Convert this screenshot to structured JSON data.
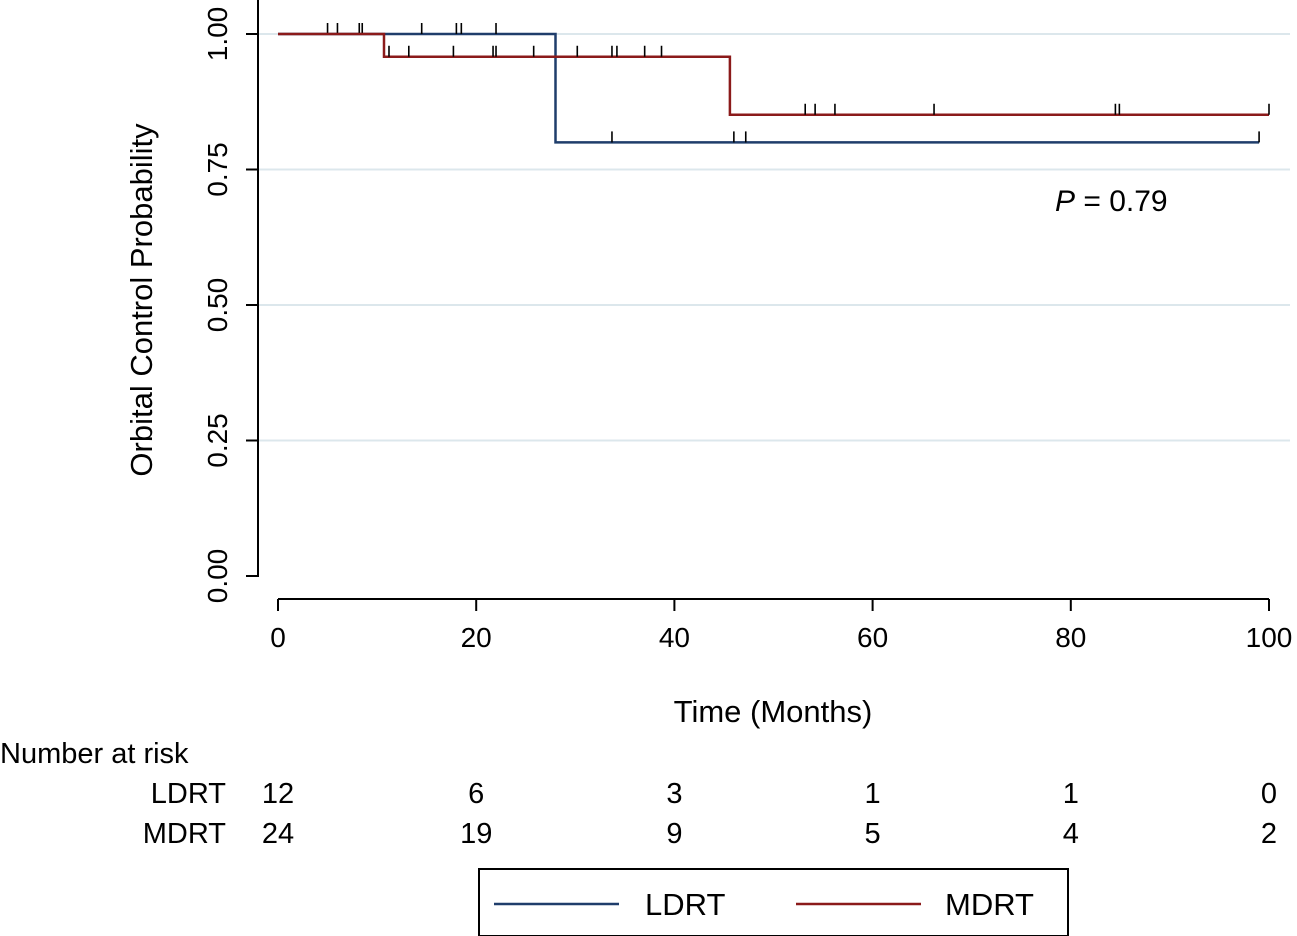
{
  "chart_data": {
    "type": "line",
    "subtype": "kaplan-meier",
    "title": "",
    "xlabel": "Time (Months)",
    "ylabel": "Orbital Control Probability",
    "xlim": [
      0,
      100
    ],
    "ylim": [
      0,
      1
    ],
    "xticks": [
      0,
      20,
      40,
      60,
      80,
      100
    ],
    "xtick_labels": [
      "0",
      "20",
      "40",
      "60",
      "80",
      "100"
    ],
    "yticks": [
      0,
      0.25,
      0.5,
      0.75,
      1
    ],
    "ytick_labels": [
      "0.00",
      "0.25",
      "0.50",
      "0.75",
      "1.00"
    ],
    "grid": true,
    "colors": {
      "LDRT": "#1f3d6b",
      "MDRT": "#8b1a1a",
      "grid": "#dce7ec",
      "axis": "#000000"
    },
    "series": [
      {
        "name": "LDRT",
        "steps": [
          [
            0,
            1.0
          ],
          [
            28,
            1.0
          ],
          [
            28,
            0.8
          ],
          [
            99,
            0.8
          ]
        ],
        "censor_times": [
          5,
          6,
          8.2,
          8.5,
          14.5,
          18,
          18.5,
          22,
          33.7,
          46,
          47.2,
          99
        ],
        "censor_values": [
          1,
          1,
          1,
          1,
          1,
          1,
          1,
          1,
          0.8,
          0.8,
          0.8,
          0.8
        ]
      },
      {
        "name": "MDRT",
        "steps": [
          [
            0,
            1.0
          ],
          [
            10.7,
            1.0
          ],
          [
            10.7,
            0.958
          ],
          [
            45.6,
            0.958
          ],
          [
            45.6,
            0.851
          ],
          [
            100,
            0.851
          ]
        ],
        "censor_times": [
          11.2,
          13.2,
          17.7,
          21.7,
          22,
          25.8,
          30.2,
          33.7,
          34.2,
          37,
          38.7,
          53.2,
          54.2,
          56.2,
          66.2,
          84.5,
          84.9,
          100
        ],
        "censor_values": [
          0.958,
          0.958,
          0.958,
          0.958,
          0.958,
          0.958,
          0.958,
          0.958,
          0.958,
          0.958,
          0.958,
          0.851,
          0.851,
          0.851,
          0.851,
          0.851,
          0.851,
          0.851
        ]
      }
    ],
    "annotation": {
      "italic": "P",
      "text": " = 0.79"
    },
    "risk_table": {
      "title": "Number at risk",
      "times": [
        0,
        20,
        40,
        60,
        80,
        100
      ],
      "rows": [
        {
          "name": "LDRT",
          "values": [
            "12",
            "6",
            "3",
            "1",
            "1",
            "0"
          ]
        },
        {
          "name": "MDRT",
          "values": [
            "24",
            "19",
            "9",
            "5",
            "4",
            "2"
          ]
        }
      ]
    },
    "legend": {
      "position": "bottom-center",
      "entries": [
        "LDRT",
        "MDRT"
      ]
    }
  }
}
